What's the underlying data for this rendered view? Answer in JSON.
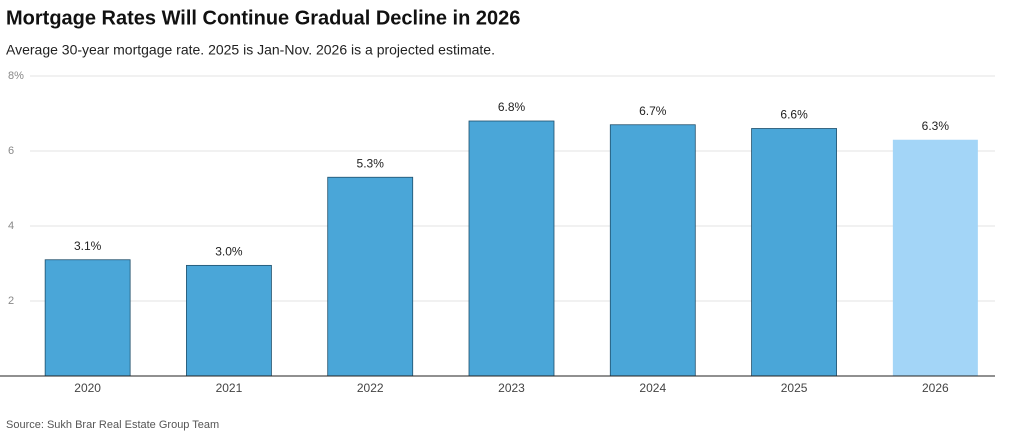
{
  "chart_data": {
    "type": "bar",
    "title": "Mortgage Rates Will Continue Gradual Decline in 2026",
    "subtitle": "Average 30-year mortgage rate. 2025 is Jan-Nov. 2026 is a projected estimate.",
    "source": "Source: Sukh Brar Real Estate Group Team",
    "categories": [
      "2020",
      "2021",
      "2022",
      "2023",
      "2024",
      "2025",
      "2026"
    ],
    "values": [
      3.1,
      2.95,
      5.3,
      6.8,
      6.7,
      6.6,
      6.3
    ],
    "value_labels": [
      "3.1%",
      "3.0%",
      "5.3%",
      "6.8%",
      "6.7%",
      "6.6%",
      "6.3%"
    ],
    "colors": [
      "#4aa6d8",
      "#4aa6d8",
      "#4aa6d8",
      "#4aa6d8",
      "#4aa6d8",
      "#4aa6d8",
      "#a3d5f7"
    ],
    "ylim": [
      0,
      8
    ],
    "yticks": [
      2,
      4,
      6,
      {
        "value": 8,
        "label": "8%"
      }
    ],
    "grid": true
  }
}
